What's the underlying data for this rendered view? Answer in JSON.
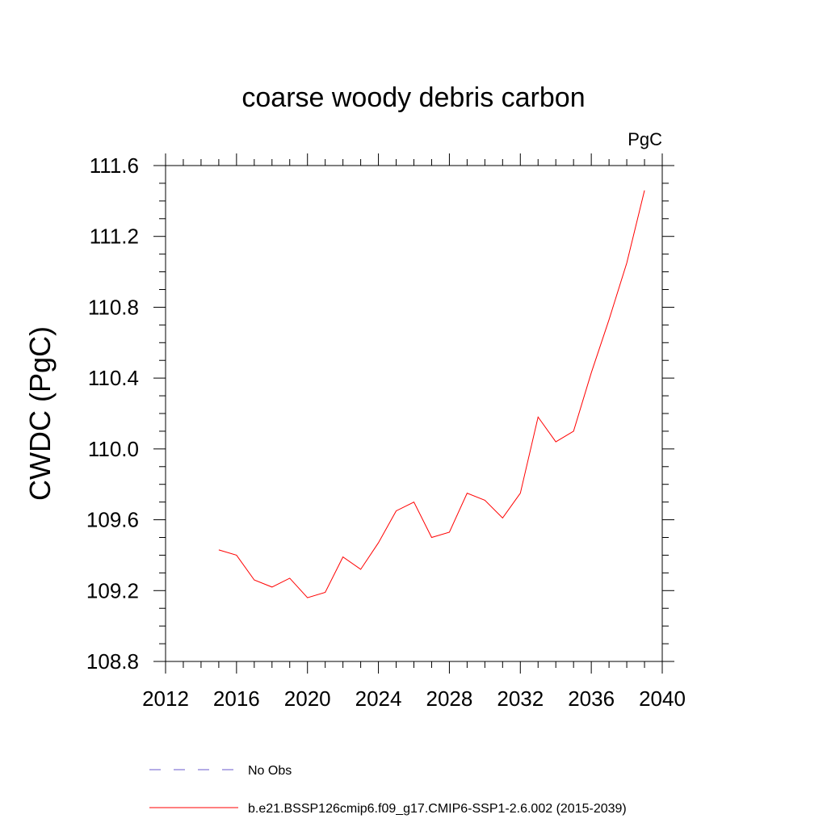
{
  "chart_data": {
    "type": "line",
    "title": "coarse woody debris carbon",
    "units_label": "PgC",
    "ylabel": "CWDC  (PgC)",
    "xlabel": "",
    "xlim": [
      2012,
      2040
    ],
    "ylim": [
      108.8,
      111.6
    ],
    "x_ticks": [
      2012,
      2016,
      2020,
      2024,
      2028,
      2032,
      2036,
      2040
    ],
    "x_tick_labels": [
      "2012",
      "2016",
      "2020",
      "2024",
      "2028",
      "2032",
      "2036",
      "2040"
    ],
    "y_ticks": [
      108.8,
      109.2,
      109.6,
      110.0,
      110.4,
      110.8,
      111.2,
      111.6
    ],
    "y_tick_labels": [
      "108.8",
      "109.2",
      "109.6",
      "110.0",
      "110.4",
      "110.8",
      "111.2",
      "111.6"
    ],
    "grid": false,
    "legend_placement": "bottom",
    "series": [
      {
        "name": "b.e21.BSSP126cmip6.f09_g17.CMIP6-SSP1-2.6.002 (2015-2039)",
        "color": "#ff0000",
        "style": "solid",
        "x": [
          2015,
          2016,
          2017,
          2018,
          2019,
          2020,
          2021,
          2022,
          2023,
          2024,
          2025,
          2026,
          2027,
          2028,
          2029,
          2030,
          2031,
          2032,
          2033,
          2034,
          2035,
          2036,
          2037,
          2038,
          2039
        ],
        "y": [
          109.43,
          109.4,
          109.26,
          109.22,
          109.27,
          109.16,
          109.19,
          109.39,
          109.32,
          109.47,
          109.65,
          109.7,
          109.5,
          109.53,
          109.75,
          109.71,
          109.61,
          109.75,
          110.18,
          110.04,
          110.1,
          110.43,
          110.73,
          111.05,
          111.46
        ]
      }
    ],
    "legend": [
      {
        "label": "No Obs",
        "color": "#6a5acd",
        "style": "dashed"
      },
      {
        "label": "b.e21.BSSP126cmip6.f09_g17.CMIP6-SSP1-2.6.002 (2015-2039)",
        "color": "#ff0000",
        "style": "solid"
      }
    ]
  }
}
